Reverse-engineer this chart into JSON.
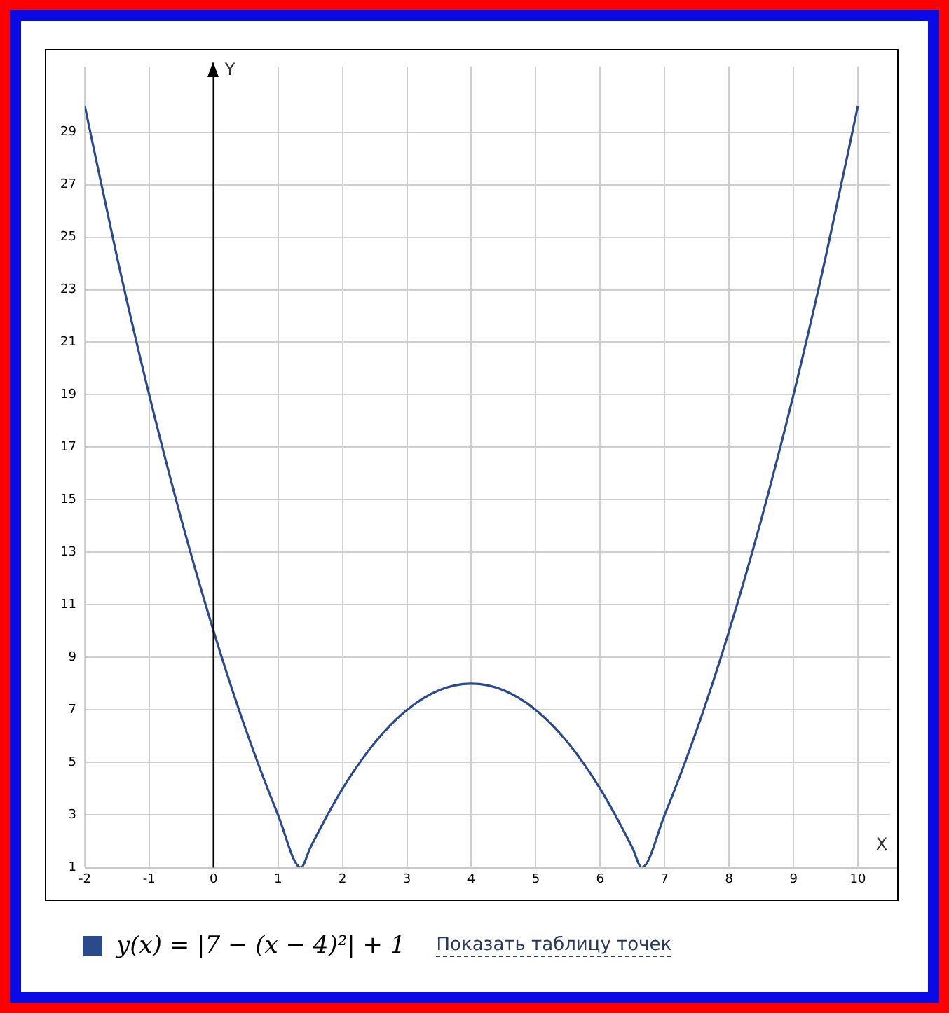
{
  "chart_data": {
    "type": "line",
    "xlabel": "X",
    "ylabel": "Y",
    "xlim": [
      -2,
      10.5
    ],
    "ylim": [
      1,
      31.5
    ],
    "xticks": [
      -2,
      -1,
      0,
      1,
      2,
      3,
      4,
      5,
      6,
      7,
      8,
      9,
      10
    ],
    "yticks": [
      1,
      3,
      5,
      7,
      9,
      11,
      13,
      15,
      17,
      19,
      21,
      23,
      25,
      27,
      29
    ],
    "grid": true,
    "legend": "bottom",
    "marker": "none",
    "line_style": "solid",
    "series": [
      {
        "name": "y(x) = |7 − (x − 4)²| + 1",
        "color": "#2b4a8c",
        "x": [
          -2,
          -1.5,
          -1,
          -0.5,
          0,
          0.5,
          1,
          1.354,
          1.5,
          2,
          2.5,
          3,
          3.5,
          4,
          4.5,
          5,
          5.5,
          6,
          6.5,
          6.646,
          7,
          7.5,
          8,
          8.5,
          9,
          9.5,
          10
        ],
        "values": [
          30,
          24.25,
          19,
          14.25,
          10,
          6.25,
          3,
          1,
          1.75,
          4,
          5.75,
          7,
          7.75,
          8,
          7.75,
          7,
          5.75,
          4,
          1.75,
          1,
          3,
          6.25,
          10,
          14.25,
          19,
          24.25,
          30
        ]
      }
    ],
    "ref_lines": [
      {
        "axis": "x",
        "value": 0,
        "color": "#000000"
      }
    ],
    "annotations": [
      "Показать таблицу точек"
    ]
  }
}
